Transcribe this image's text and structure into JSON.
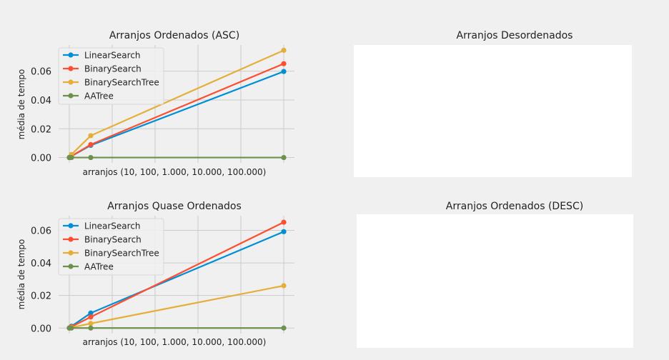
{
  "colors": {
    "LinearSearch": "#008fd5",
    "BinarySearch": "#fc4f30",
    "BinarySearchTree": "#e5ae38",
    "AATree": "#6d904f",
    "background": "#f0f0f0",
    "grid": "#cbcbcb"
  },
  "chart_data": [
    {
      "type": "line",
      "title": "Arranjos Ordenados (ASC)",
      "xlabel": "arranjos (10, 100, 1.000, 10.000, 100.000)",
      "ylabel": "média de tempo",
      "x": [
        10,
        100,
        1000,
        10000,
        100000
      ],
      "xlim": [
        -4990,
        105000
      ],
      "ylim": [
        -0.0037,
        0.0782
      ],
      "yticks": [
        "0.00",
        "0.02",
        "0.04",
        "0.06"
      ],
      "grid": true,
      "legend_position": "upper-left",
      "series": [
        {
          "name": "LinearSearch",
          "values": [
            0.0,
            0.0001,
            0.0009,
            0.0085,
            0.0598
          ]
        },
        {
          "name": "BinarySearch",
          "values": [
            0.0,
            0.0001,
            0.001,
            0.009,
            0.0652
          ]
        },
        {
          "name": "BinarySearchTree",
          "values": [
            0.0,
            0.0001,
            0.0021,
            0.0152,
            0.0745
          ]
        },
        {
          "name": "AATree",
          "values": [
            0.0,
            0.0,
            0.0,
            0.0,
            0.0
          ]
        }
      ]
    },
    {
      "type": "line",
      "title": "Arranjos Desordenados",
      "empty": true
    },
    {
      "type": "line",
      "title": "Arranjos Quase Ordenados",
      "xlabel": "arranjos (10, 100, 1.000, 10.000, 100.000)",
      "ylabel": "média de tempo",
      "x": [
        10,
        100,
        1000,
        10000,
        100000
      ],
      "xlim": [
        -4990,
        105000
      ],
      "ylim": [
        -0.0034,
        0.069
      ],
      "yticks": [
        "0.00",
        "0.02",
        "0.04",
        "0.06"
      ],
      "grid": true,
      "legend_position": "upper-left",
      "series": [
        {
          "name": "LinearSearch",
          "values": [
            0.0,
            0.0001,
            0.0011,
            0.0092,
            0.0592
          ]
        },
        {
          "name": "BinarySearch",
          "values": [
            0.0,
            0.0001,
            0.0008,
            0.0068,
            0.065
          ]
        },
        {
          "name": "BinarySearchTree",
          "values": [
            0.0,
            0.0,
            0.0003,
            0.0028,
            0.026
          ]
        },
        {
          "name": "AATree",
          "values": [
            0.0,
            0.0,
            0.0,
            0.0,
            0.0
          ]
        }
      ]
    },
    {
      "type": "line",
      "title": "Arranjos Ordenados (DESC)",
      "empty": true
    }
  ]
}
